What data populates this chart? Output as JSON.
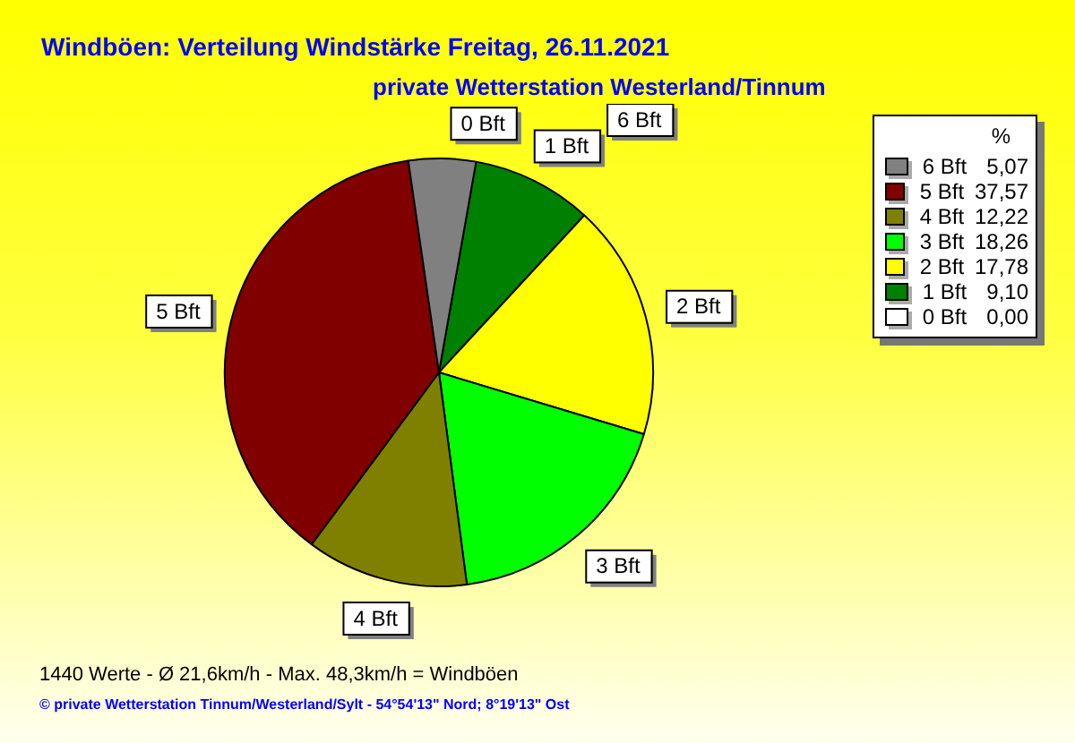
{
  "chart_data": {
    "type": "pie",
    "title": "Windböen: Verteilung Windstärke  Freitag, 26.11.2021",
    "subtitle": "private Wetterstation Westerland/Tinnum",
    "categories": [
      "6 Bft",
      "5 Bft",
      "4 Bft",
      "3 Bft",
      "2 Bft",
      "1 Bft",
      "0 Bft"
    ],
    "values": [
      5.07,
      37.57,
      12.22,
      18.26,
      17.78,
      9.1,
      0.0
    ],
    "value_labels": [
      "5,07",
      "37,57",
      "12,22",
      "18,26",
      "17,78",
      "9,10",
      "0,00"
    ],
    "colors": [
      "#808080",
      "#800000",
      "#808000",
      "#00ff00",
      "#ffff00",
      "#008000",
      "#ffffff"
    ],
    "legend": "top right",
    "legend_title": "%",
    "annotations": [
      "1440 Werte   -   Ø 21,6km/h  -  Max. 48,3km/h = Windböen",
      "© private Wetterstation Tinnum/Westerland/Sylt  -  54°54'13\" Nord; 8°19'13\" Ost"
    ]
  }
}
